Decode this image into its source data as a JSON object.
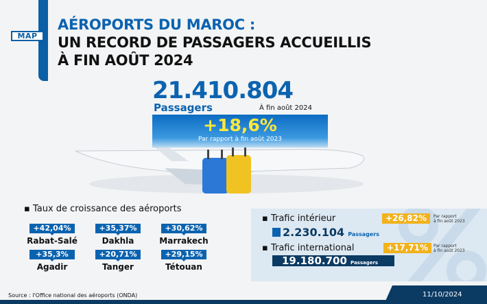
{
  "header": {
    "logo": "MAP",
    "line1": "AÉROPORTS DU MAROC :",
    "line2": "UN RECORD DE PASSAGERS ACCUEILLIS",
    "line3": "À FIN AOÛT 2024"
  },
  "total": {
    "value": "21.410.804",
    "unit": "Passagers",
    "period": "À fin août 2024",
    "growth": "+18,6%",
    "growth_note": "Par rapport à fin août 2023"
  },
  "airports": {
    "title": "Taux de croissance des aéroports",
    "items": [
      {
        "name": "Rabat-Salé",
        "growth": "+42,04%"
      },
      {
        "name": "Dakhla",
        "growth": "+35,37%"
      },
      {
        "name": "Marrakech",
        "growth": "+30,62%"
      },
      {
        "name": "Agadir",
        "growth": "+35,3%"
      },
      {
        "name": "Tanger",
        "growth": "+20,71%"
      },
      {
        "name": "Tétouan",
        "growth": "+29,15%"
      }
    ]
  },
  "traffic": {
    "domestic": {
      "label": "Trafic intérieur",
      "value": "2.230.104",
      "unit": "Passagers",
      "growth": "+26,82%",
      "note1": "Par rapport",
      "note2": "à fin août 2023"
    },
    "international": {
      "label": "Trafic international",
      "value": "19.180.700",
      "unit": "Passagers",
      "growth": "+17,71%",
      "note1": "Par rapport",
      "note2": "à fin août 2023"
    }
  },
  "footer": {
    "source": "Source : l'Office national des aéroports (ONDA)",
    "date": "11/10/2024"
  },
  "colors": {
    "blue": "#0b63b0",
    "navy": "#0b3a63",
    "yellow": "#f1b21c",
    "growth_text": "#ffe83a"
  }
}
